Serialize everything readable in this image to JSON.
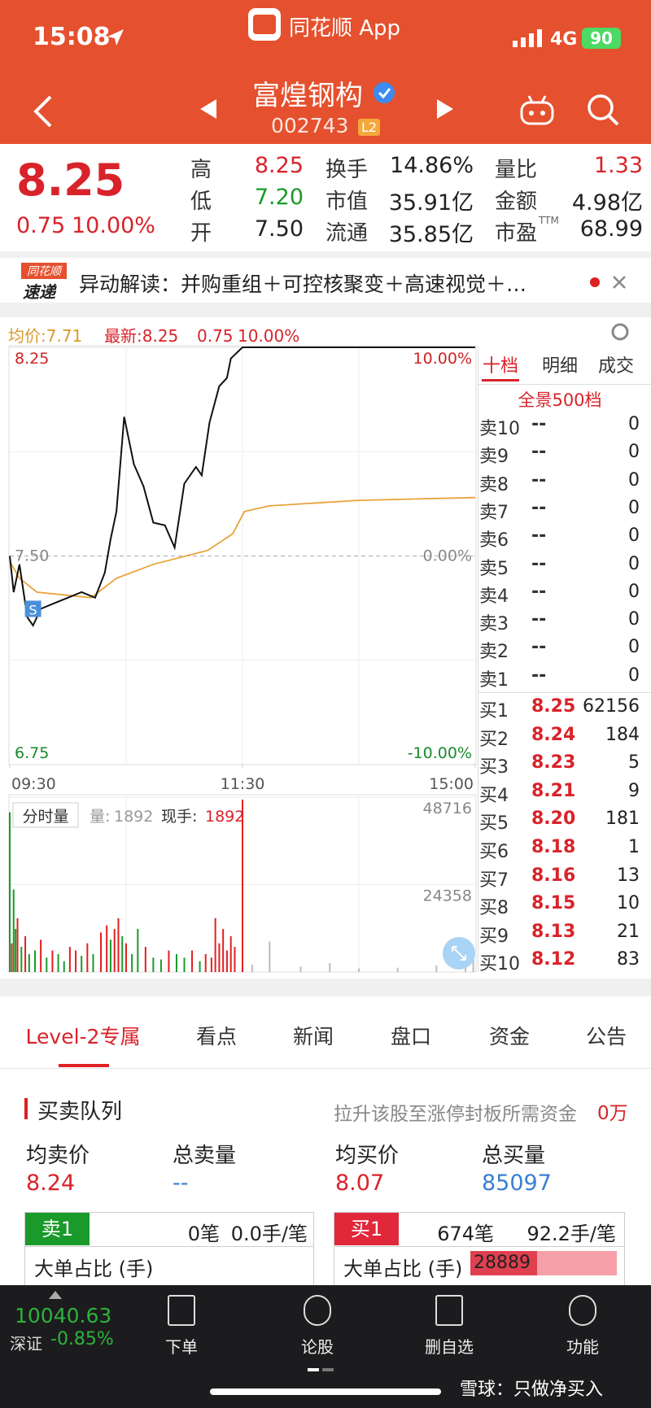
{
  "status_bar": {
    "time": "15:08",
    "app": "同花顺 App",
    "network": "4G",
    "battery": "90"
  },
  "header": {
    "name": "富煌钢构",
    "code": "002743",
    "level": "L2"
  },
  "quote": {
    "price": "8.25",
    "change": "0.75",
    "change_pct": "10.00%",
    "stats": [
      {
        "label": "高",
        "value": "8.25"
      },
      {
        "label": "低",
        "value": "7.20"
      },
      {
        "label": "开",
        "value": "7.50"
      },
      {
        "label": "换手",
        "value": "14.86%"
      },
      {
        "label": "市值",
        "value": "35.91亿"
      },
      {
        "label": "流通",
        "value": "35.85亿"
      },
      {
        "label": "量比",
        "value": "1.33"
      },
      {
        "label": "金额",
        "value": "4.98亿"
      },
      {
        "label": "市盈",
        "value": "68.99"
      }
    ],
    "ttm": "TTM"
  },
  "news": {
    "logo_top": "同花顺",
    "logo_bottom": "速递",
    "text": "异动解读：并购重组＋可控核聚变＋高速视觉＋…"
  },
  "chart_data": {
    "type": "line",
    "avg_label": "均价:7.71",
    "latest_label": "最新:8.25",
    "latest_change": "0.75",
    "latest_pct": "10.00%",
    "sell_marker": "S",
    "xlim": [
      0,
      240
    ],
    "xticks": [
      {
        "value": 0,
        "label": "09:30"
      },
      {
        "value": 120,
        "label": "11:30"
      },
      {
        "value": 240,
        "label": "15:00"
      }
    ],
    "ylim": [
      6.75,
      8.25
    ],
    "yticks": [
      8.25,
      {
        "value": 7.5,
        "label": "7.50"
      },
      6.75
    ],
    "y2lim": [
      -10,
      10
    ],
    "y2ticks": [
      {
        "value": 10,
        "label": "10.00%"
      },
      {
        "value": 0,
        "label": "0.00%"
      },
      {
        "value": -10,
        "label": "-10.00%"
      }
    ],
    "price": {
      "color": "#111111",
      "x": [
        0,
        2,
        5,
        9,
        12,
        16,
        23,
        30,
        37,
        44,
        49,
        52,
        55,
        59,
        64,
        69,
        74,
        80,
        85,
        90,
        96,
        99,
        103,
        108,
        112,
        114,
        120,
        240
      ],
      "values": [
        7.5,
        7.37,
        7.47,
        7.28,
        7.25,
        7.31,
        7.33,
        7.35,
        7.37,
        7.35,
        7.44,
        7.56,
        7.66,
        8.0,
        7.83,
        7.75,
        7.62,
        7.61,
        7.53,
        7.76,
        7.82,
        7.79,
        7.98,
        8.11,
        8.14,
        8.21,
        8.25,
        8.25
      ]
    },
    "average": {
      "color": "#e8a33a",
      "x": [
        0,
        5,
        14,
        42,
        55,
        74,
        102,
        115,
        121,
        134,
        180,
        240
      ],
      "values": [
        7.48,
        7.42,
        7.37,
        7.35,
        7.42,
        7.47,
        7.52,
        7.58,
        7.66,
        7.68,
        7.7,
        7.71
      ]
    },
    "volume": {
      "button": "分时量",
      "volume_label": "量:",
      "volume_value": "1892",
      "hand_label": "现手:",
      "hand_value": "1892",
      "ylim": [
        0,
        48716
      ],
      "yticks": [
        24358,
        48716
      ],
      "x": [
        0,
        1,
        2,
        3,
        4,
        6,
        8,
        10,
        13,
        16,
        19,
        22,
        25,
        28,
        31,
        34,
        37,
        40,
        43,
        47,
        50,
        52,
        54,
        56,
        58,
        60,
        63,
        66,
        70,
        74,
        78,
        82,
        86,
        90,
        94,
        98,
        101,
        104,
        106,
        108,
        110,
        112,
        114,
        116,
        120,
        125,
        134,
        150,
        165,
        180,
        200,
        220,
        235,
        239
      ],
      "values": [
        44500,
        8000,
        23000,
        12000,
        15000,
        7000,
        10000,
        5000,
        6000,
        9000,
        4000,
        6000,
        5000,
        3000,
        7000,
        6000,
        4500,
        8000,
        5000,
        11000,
        13000,
        9000,
        12000,
        15000,
        10000,
        8000,
        5000,
        12000,
        7000,
        4000,
        3500,
        6000,
        5000,
        4000,
        6000,
        3000,
        5000,
        4000,
        15000,
        8000,
        12000,
        6000,
        10000,
        7000,
        48000,
        2000,
        8500,
        1500,
        2500,
        1000,
        1200,
        1800,
        2000,
        3500
      ],
      "colors": [
        "#1a9a2a",
        "#e02020",
        "#1a9a2a",
        "#1a9a2a",
        "#e02020",
        "#1a9a2a",
        "#e02020",
        "#1a9a2a",
        "#1a9a2a",
        "#e02020",
        "#1a9a2a",
        "#e02020",
        "#1a9a2a",
        "#1a9a2a",
        "#e02020",
        "#e02020",
        "#1a9a2a",
        "#e02020",
        "#1a9a2a",
        "#e02020",
        "#e02020",
        "#1a9a2a",
        "#e02020",
        "#e02020",
        "#1a9a2a",
        "#e02020",
        "#1a9a2a",
        "#1a9a2a",
        "#e02020",
        "#1a9a2a",
        "#1a9a2a",
        "#e02020",
        "#1a9a2a",
        "#1a9a2a",
        "#e02020",
        "#1a9a2a",
        "#e02020",
        "#e02020",
        "#e02020",
        "#e02020",
        "#e02020",
        "#e02020",
        "#e02020",
        "#e02020",
        "#e02020",
        "#bbbbbb",
        "#bbbbbb",
        "#bbbbbb",
        "#bbbbbb",
        "#bbbbbb",
        "#bbbbbb",
        "#bbbbbb",
        "#bbbbbb",
        "#bbbbbb"
      ]
    }
  },
  "order_book": {
    "tabs": [
      "十档",
      "明细",
      "成交"
    ],
    "depth_label": "全景500档",
    "asks": [
      {
        "label": "卖10",
        "price": "--",
        "volume": "0"
      },
      {
        "label": "卖9",
        "price": "--",
        "volume": "0"
      },
      {
        "label": "卖8",
        "price": "--",
        "volume": "0"
      },
      {
        "label": "卖7",
        "price": "--",
        "volume": "0"
      },
      {
        "label": "卖6",
        "price": "--",
        "volume": "0"
      },
      {
        "label": "卖5",
        "price": "--",
        "volume": "0"
      },
      {
        "label": "卖4",
        "price": "--",
        "volume": "0"
      },
      {
        "label": "卖3",
        "price": "--",
        "volume": "0"
      },
      {
        "label": "卖2",
        "price": "--",
        "volume": "0"
      },
      {
        "label": "卖1",
        "price": "--",
        "volume": "0"
      }
    ],
    "bids": [
      {
        "label": "买1",
        "price": "8.25",
        "volume": "62156"
      },
      {
        "label": "买2",
        "price": "8.24",
        "volume": "184"
      },
      {
        "label": "买3",
        "price": "8.23",
        "volume": "5"
      },
      {
        "label": "买4",
        "price": "8.21",
        "volume": "9"
      },
      {
        "label": "买5",
        "price": "8.20",
        "volume": "181"
      },
      {
        "label": "买6",
        "price": "8.18",
        "volume": "1"
      },
      {
        "label": "买7",
        "price": "8.16",
        "volume": "13"
      },
      {
        "label": "买8",
        "price": "8.15",
        "volume": "10"
      },
      {
        "label": "买9",
        "price": "8.13",
        "volume": "21"
      },
      {
        "label": "买10",
        "price": "8.12",
        "volume": "83"
      }
    ]
  },
  "tabs": [
    "Level-2专属",
    "看点",
    "新闻",
    "盘口",
    "资金",
    "公告"
  ],
  "queue": {
    "title": "买卖队列",
    "note": "拉升该股至涨停封板所需资金",
    "note_value": "0万",
    "sell": {
      "avg_label": "均卖价",
      "avg": "8.24",
      "total_label": "总卖量",
      "total": "--",
      "level": "卖1",
      "count": "0笔",
      "per": "0.0手/笔",
      "big_label": "大单占比 (手)"
    },
    "buy": {
      "avg_label": "均买价",
      "avg": "8.07",
      "total_label": "总买量",
      "total": "85097",
      "level": "买1",
      "count": "674笔",
      "per": "92.2手/笔",
      "big_label": "大单占比 (手)",
      "big_value": "28889"
    }
  },
  "bottom_nav": {
    "index_value": "10040.63",
    "index_name": "深证",
    "index_change": "-0.85%",
    "items": [
      "下单",
      "论股",
      "删自选",
      "功能"
    ],
    "watermark": "雪球：只做净买入"
  }
}
